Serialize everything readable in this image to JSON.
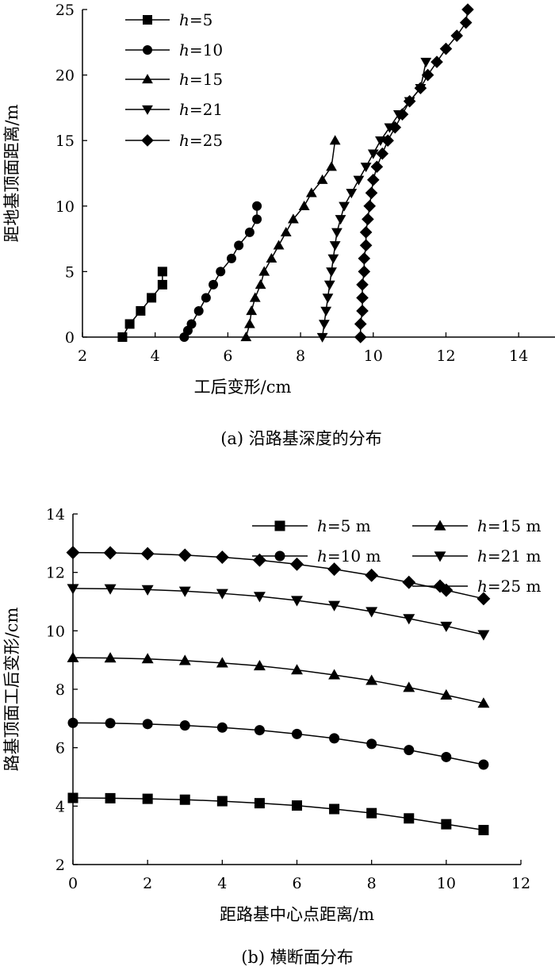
{
  "chart_data": [
    {
      "type": "line",
      "xlabel": "工后变形/cm",
      "ylabel": "距地基顶面距离/m",
      "caption": "(a) 沿路基深度的分布",
      "xlim": [
        2,
        15
      ],
      "ylim": [
        0,
        25
      ],
      "xticks": [
        2,
        4,
        6,
        8,
        10,
        12,
        14
      ],
      "yticks": [
        0,
        5,
        10,
        15,
        20,
        25
      ],
      "legend_position": "top-left",
      "series": [
        {
          "name": "h=5",
          "legend_var": "h",
          "legend_val": "=5",
          "marker": "square",
          "x": [
            3.1,
            3.3,
            3.6,
            3.9,
            4.2,
            4.2
          ],
          "y": [
            0,
            1,
            2,
            3,
            4,
            5
          ]
        },
        {
          "name": "h=10",
          "legend_var": "h",
          "legend_val": "=10",
          "marker": "circle",
          "x": [
            4.8,
            4.9,
            5.0,
            5.2,
            5.4,
            5.6,
            5.8,
            6.1,
            6.3,
            6.6,
            6.8,
            6.8
          ],
          "y": [
            0,
            0.5,
            1,
            2,
            3,
            4,
            5,
            6,
            7,
            8,
            9,
            10
          ]
        },
        {
          "name": "h=15",
          "legend_var": "h",
          "legend_val": "=15",
          "marker": "triangle-up",
          "x": [
            6.5,
            6.6,
            6.65,
            6.75,
            6.9,
            7.0,
            7.2,
            7.4,
            7.6,
            7.8,
            8.1,
            8.3,
            8.6,
            8.85,
            8.95
          ],
          "y": [
            0,
            1,
            2,
            3,
            4,
            5,
            6,
            7,
            8,
            9,
            10,
            11,
            12,
            13,
            15
          ]
        },
        {
          "name": "h=21",
          "legend_var": "h",
          "legend_val": "=21",
          "marker": "triangle-down",
          "x": [
            8.6,
            8.65,
            8.7,
            8.75,
            8.8,
            8.85,
            8.9,
            8.95,
            9.0,
            9.1,
            9.2,
            9.4,
            9.6,
            9.8,
            10.0,
            10.2,
            10.45,
            10.7,
            11.0,
            11.3,
            11.45
          ],
          "y": [
            0,
            1,
            2,
            3,
            4,
            5,
            6,
            7,
            8,
            9,
            10,
            11,
            12,
            13,
            14,
            15,
            16,
            17,
            18,
            19,
            21
          ]
        },
        {
          "name": "h=25",
          "legend_var": "h",
          "legend_val": "=25",
          "marker": "diamond",
          "x": [
            9.65,
            9.65,
            9.7,
            9.7,
            9.7,
            9.75,
            9.75,
            9.8,
            9.8,
            9.85,
            9.9,
            9.95,
            10.0,
            10.1,
            10.25,
            10.4,
            10.6,
            10.8,
            11.0,
            11.3,
            11.5,
            11.75,
            12.0,
            12.3,
            12.55,
            12.6
          ],
          "y": [
            0,
            1,
            2,
            3,
            4,
            5,
            6,
            7,
            8,
            9,
            10,
            11,
            12,
            13,
            14,
            15,
            16,
            17,
            18,
            19,
            20,
            21,
            22,
            23,
            24,
            25
          ]
        }
      ]
    },
    {
      "type": "line",
      "xlabel": "距路基中心点距离/m",
      "ylabel": "路基顶面工后变形/cm",
      "caption": "(b) 横断面分布",
      "xlim": [
        0,
        12
      ],
      "ylim": [
        2,
        14
      ],
      "xticks": [
        0,
        2,
        4,
        6,
        8,
        10,
        12
      ],
      "yticks": [
        2,
        4,
        6,
        8,
        10,
        12,
        14
      ],
      "legend_position": "top-right",
      "x": [
        0,
        1,
        2,
        3,
        4,
        5,
        6,
        7,
        8,
        9,
        10,
        11
      ],
      "series": [
        {
          "name": "h=5 m",
          "legend_var": "h",
          "legend_val": "=5 m",
          "marker": "square",
          "values": [
            4.28,
            4.27,
            4.25,
            4.22,
            4.17,
            4.1,
            4.02,
            3.9,
            3.76,
            3.58,
            3.38,
            3.18
          ]
        },
        {
          "name": "h=10 m",
          "legend_var": "h",
          "legend_val": "=10 m",
          "marker": "circle",
          "values": [
            6.85,
            6.84,
            6.81,
            6.76,
            6.69,
            6.6,
            6.47,
            6.32,
            6.13,
            5.92,
            5.68,
            5.42
          ]
        },
        {
          "name": "h=15 m",
          "legend_var": "h",
          "legend_val": "=15 m",
          "marker": "triangle-up",
          "values": [
            9.08,
            9.07,
            9.04,
            8.98,
            8.9,
            8.8,
            8.66,
            8.49,
            8.3,
            8.06,
            7.8,
            7.52
          ]
        },
        {
          "name": "h=21 m",
          "legend_var": "h",
          "legend_val": "=21 m",
          "marker": "triangle-down",
          "values": [
            11.45,
            11.44,
            11.41,
            11.36,
            11.28,
            11.18,
            11.04,
            10.87,
            10.66,
            10.42,
            10.16,
            9.87
          ]
        },
        {
          "name": "h=25 m",
          "legend_var": "h",
          "legend_val": "=25 m",
          "marker": "diamond",
          "values": [
            12.68,
            12.67,
            12.64,
            12.59,
            12.52,
            12.42,
            12.28,
            12.11,
            11.9,
            11.66,
            11.39,
            11.1
          ]
        }
      ]
    }
  ]
}
